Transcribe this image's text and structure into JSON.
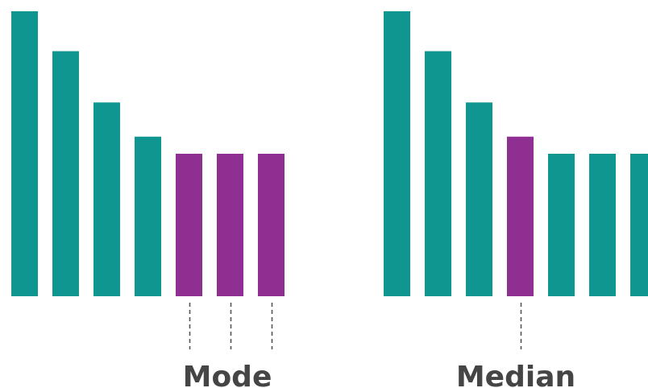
{
  "chart_data": [
    {
      "type": "bar",
      "label": "Mode",
      "values": [
        100,
        86,
        68,
        56,
        50,
        50,
        50
      ],
      "highlight_indices": [
        4,
        5,
        6
      ],
      "colors": {
        "bar": "#0f9690",
        "highlight": "#8f2f91"
      }
    },
    {
      "type": "bar",
      "label": "Median",
      "values": [
        100,
        86,
        68,
        56,
        50,
        50,
        50
      ],
      "highlight_indices": [
        3
      ],
      "colors": {
        "bar": "#0f9690",
        "highlight": "#8f2f91"
      }
    }
  ]
}
